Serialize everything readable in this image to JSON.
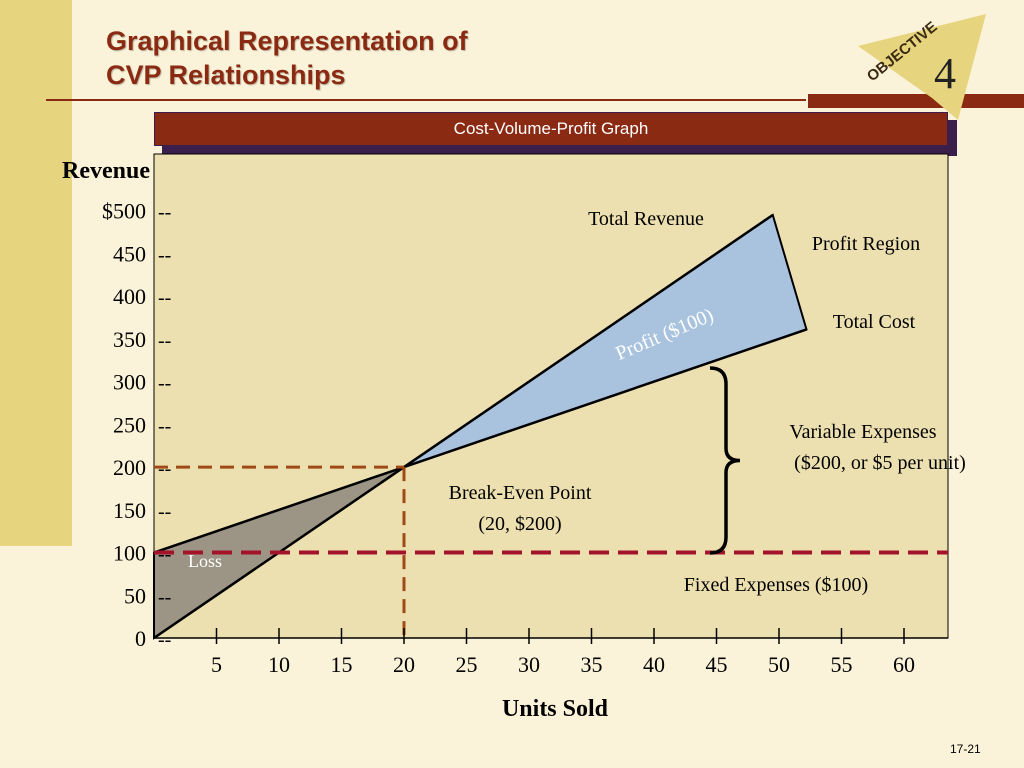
{
  "slide": {
    "title_line1": "Graphical Representation of",
    "title_line2": "CVP Relationships",
    "objective_label": "OBJECTIVE",
    "objective_number": "4",
    "banner": "Cost-Volume-Profit Graph",
    "slide_number": "17-21"
  },
  "chart_data": {
    "type": "line",
    "ylabel": "Revenue",
    "xlabel": "Units Sold",
    "y_ticks": [
      "$500",
      "450",
      "400",
      "350",
      "300",
      "250",
      "200",
      "150",
      "100",
      "50",
      "0"
    ],
    "y_tick_values": [
      500,
      450,
      400,
      350,
      300,
      250,
      200,
      150,
      100,
      50,
      0
    ],
    "y_dash": "--",
    "x_ticks": [
      "5",
      "10",
      "15",
      "20",
      "25",
      "30",
      "35",
      "40",
      "45",
      "50",
      "55",
      "60"
    ],
    "x_tick_values": [
      5,
      10,
      15,
      20,
      25,
      30,
      35,
      40,
      45,
      50,
      55,
      60
    ],
    "xlim": [
      0,
      64
    ],
    "ylim": [
      0,
      560
    ],
    "series": [
      {
        "name": "Total Revenue",
        "x": [
          0,
          49.5
        ],
        "y": [
          0,
          495
        ]
      },
      {
        "name": "Total Cost",
        "x": [
          0,
          52.2
        ],
        "y": [
          100,
          361
        ]
      }
    ],
    "fixed_expenses": 100,
    "break_even": {
      "x": 20,
      "y": 200
    },
    "annotations": {
      "total_revenue": "Total Revenue",
      "profit_region": "Profit Region",
      "total_cost": "Total Cost",
      "profit": "Profit ($100)",
      "variable_expenses_line1": "Variable Expenses",
      "variable_expenses_line2": "($200, or $5 per unit)",
      "break_even_line1": "Break-Even Point",
      "break_even_line2": "(20, $200)",
      "loss": "Loss",
      "fixed_expenses": "Fixed Expenses ($100)"
    },
    "colors": {
      "plot_bg": "#EDE0B0",
      "profit_fill": "#A9C3DE",
      "loss_fill": "#9C9484",
      "fixed_dash": "#A3142B",
      "break_even_dash": "#A04A18"
    }
  }
}
